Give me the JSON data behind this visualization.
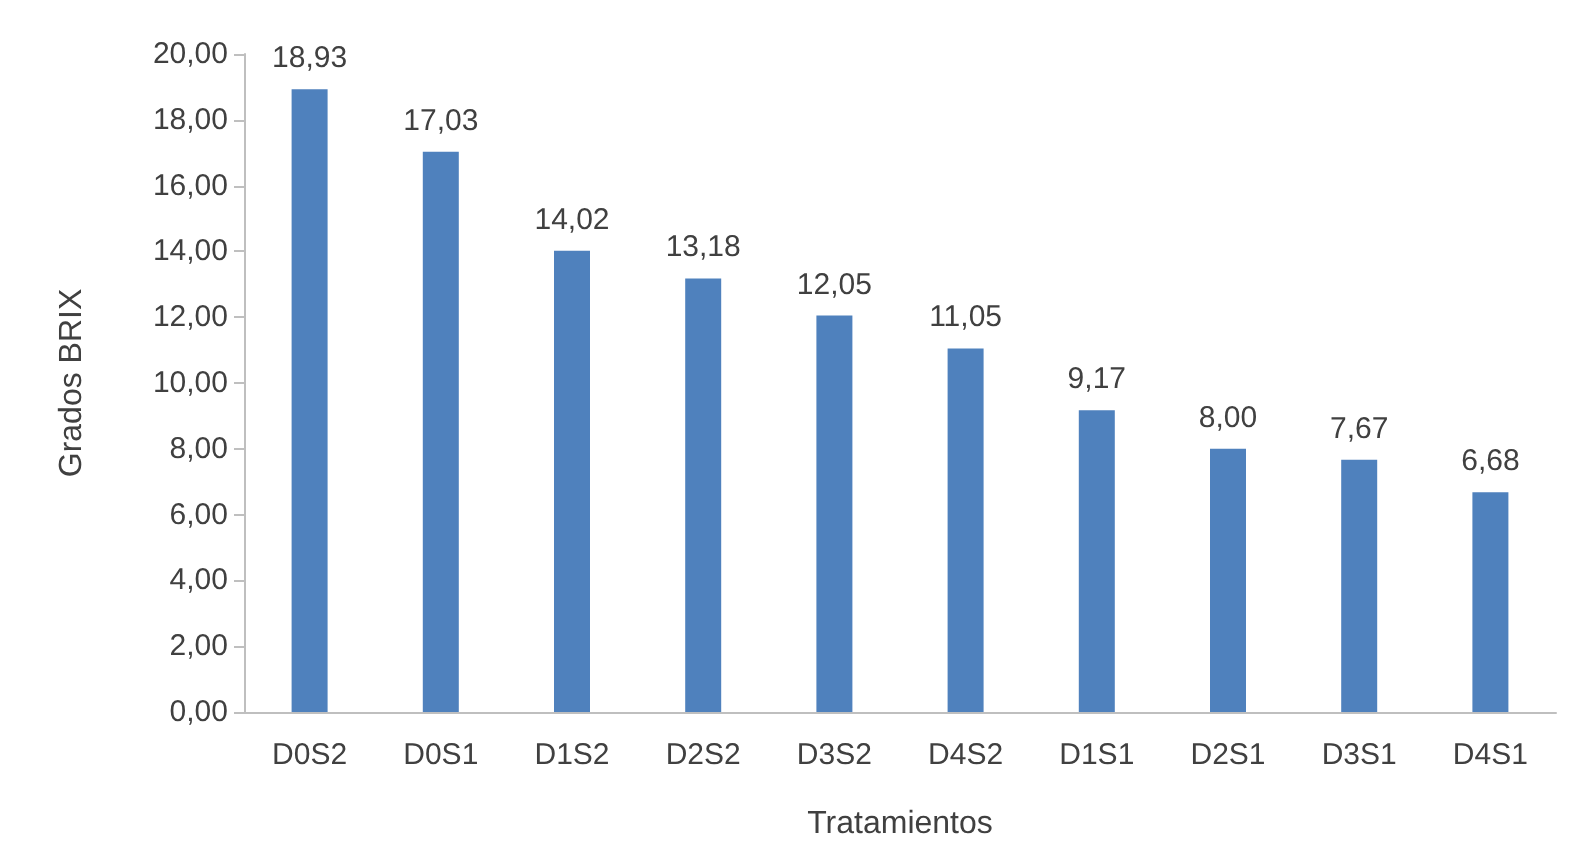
{
  "chart_data": {
    "type": "bar",
    "xlabel": "Tratamientos",
    "ylabel": "Grados BRIX",
    "categories": [
      "D0S2",
      "D0S1",
      "D1S2",
      "D2S2",
      "D3S2",
      "D4S2",
      "D1S1",
      "D2S1",
      "D3S1",
      "D4S1"
    ],
    "values": [
      18.93,
      17.03,
      14.02,
      13.18,
      12.05,
      11.05,
      9.17,
      8.0,
      7.67,
      6.68
    ],
    "value_labels": [
      "18,93",
      "17,03",
      "14,02",
      "13,18",
      "12,05",
      "11,05",
      "9,17",
      "8,00",
      "7,67",
      "6,68"
    ],
    "color": "#4f81bd",
    "ylim": [
      0,
      20
    ],
    "yticks": [
      {
        "value": 0,
        "label": "0,00"
      },
      {
        "value": 2,
        "label": "2,00"
      },
      {
        "value": 4,
        "label": "4,00"
      },
      {
        "value": 6,
        "label": "6,00"
      },
      {
        "value": 8,
        "label": "8,00"
      },
      {
        "value": 10,
        "label": "10,00"
      },
      {
        "value": 12,
        "label": "12,00"
      },
      {
        "value": 14,
        "label": "14,00"
      },
      {
        "value": 16,
        "label": "16,00"
      },
      {
        "value": 18,
        "label": "18,00"
      },
      {
        "value": 20,
        "label": "20,00"
      }
    ],
    "grid": false
  }
}
